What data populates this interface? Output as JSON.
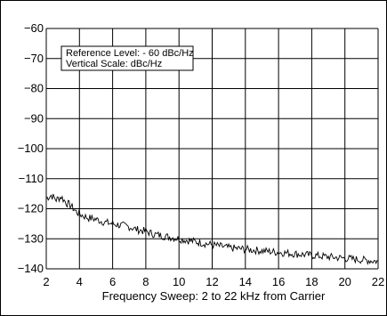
{
  "chart_data": {
    "type": "line",
    "xlabel": "Frequency Sweep: 2 to 22 kHz from Carrier",
    "ylabel": "",
    "xlim": [
      2,
      22
    ],
    "ylim": [
      -140,
      -60
    ],
    "x_ticks": [
      2,
      4,
      6,
      8,
      10,
      12,
      14,
      16,
      18,
      20,
      22
    ],
    "y_ticks": [
      -60,
      -70,
      -80,
      -90,
      -100,
      -110,
      -120,
      -130,
      -140
    ],
    "x_tick_labels": [
      "2",
      "4",
      "6",
      "8",
      "10",
      "12",
      "14",
      "16",
      "18",
      "20",
      "22"
    ],
    "y_tick_labels": [
      "−60",
      "−70",
      "−80",
      "−90",
      "−100",
      "−110",
      "−120",
      "−130",
      "−140"
    ],
    "grid": true,
    "annotation": {
      "line1": "Reference Level: - 60 dBc/Hz",
      "line2": "Vertical Scale: dBc/Hz"
    },
    "series": [
      {
        "color": "#000000",
        "points": [
          [
            2.0,
            -116.5
          ],
          [
            2.3,
            -115.5
          ],
          [
            2.6,
            -117.0
          ],
          [
            2.9,
            -116.0
          ],
          [
            3.2,
            -118.0
          ],
          [
            3.5,
            -119.0
          ],
          [
            3.8,
            -121.0
          ],
          [
            4.1,
            -122.0
          ],
          [
            4.5,
            -123.0
          ],
          [
            5.0,
            -123.5
          ],
          [
            5.5,
            -124.5
          ],
          [
            6.0,
            -125.0
          ],
          [
            6.5,
            -125.5
          ],
          [
            7.0,
            -126.0
          ],
          [
            7.5,
            -127.0
          ],
          [
            8.0,
            -127.5
          ],
          [
            8.5,
            -128.5
          ],
          [
            9.0,
            -129.0
          ],
          [
            9.5,
            -129.5
          ],
          [
            10.0,
            -130.0
          ],
          [
            10.5,
            -130.5
          ],
          [
            11.0,
            -131.0
          ],
          [
            11.5,
            -131.5
          ],
          [
            12.0,
            -132.0
          ],
          [
            13.0,
            -133.0
          ],
          [
            14.0,
            -133.5
          ],
          [
            15.0,
            -134.0
          ],
          [
            16.0,
            -134.5
          ],
          [
            17.0,
            -135.0
          ],
          [
            18.0,
            -135.5
          ],
          [
            19.0,
            -136.0
          ],
          [
            20.0,
            -136.5
          ],
          [
            21.0,
            -137.0
          ],
          [
            22.0,
            -137.5
          ]
        ]
      }
    ]
  }
}
